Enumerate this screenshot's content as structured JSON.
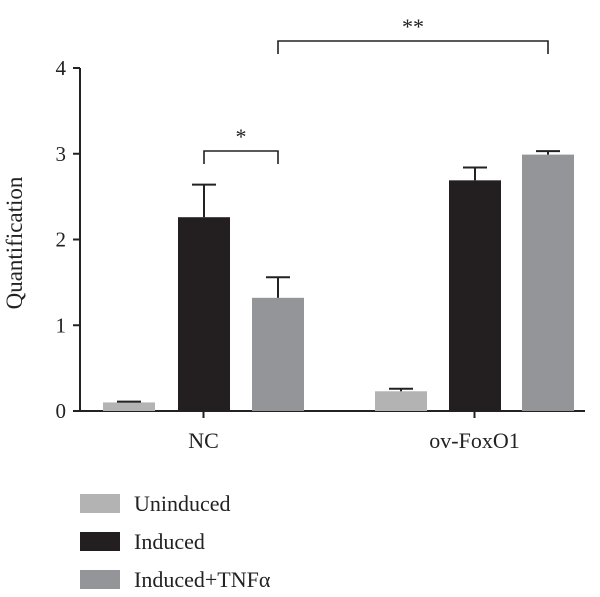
{
  "chart_data": {
    "type": "bar",
    "title": "",
    "xlabel": "",
    "ylabel": "Quantification",
    "ylim": [
      0,
      4
    ],
    "yticks": [
      "0",
      "1",
      "2",
      "3",
      "4"
    ],
    "grid": false,
    "legend_position": "bottom-left",
    "categories": [
      "NC",
      "ov-FoxO1"
    ],
    "series": [
      {
        "name": "Uninduced",
        "color": "#b3b3b3",
        "values": [
          0.1,
          0.23
        ],
        "errors": [
          0.01,
          0.03
        ]
      },
      {
        "name": "Induced",
        "color": "#231f20",
        "values": [
          2.26,
          2.69
        ],
        "errors": [
          0.38,
          0.15
        ]
      },
      {
        "name": "Induced+TNFα",
        "color": "#939598",
        "values": [
          1.32,
          2.99
        ],
        "errors": [
          0.24,
          0.04
        ]
      }
    ],
    "annotations": [
      {
        "label": "*",
        "from": [
          "NC",
          "Induced"
        ],
        "to": [
          "NC",
          "Induced+TNFα"
        ]
      },
      {
        "label": "**",
        "from": [
          "NC",
          "Induced+TNFα"
        ],
        "to": [
          "ov-FoxO1",
          "Induced+TNFα"
        ]
      }
    ]
  }
}
